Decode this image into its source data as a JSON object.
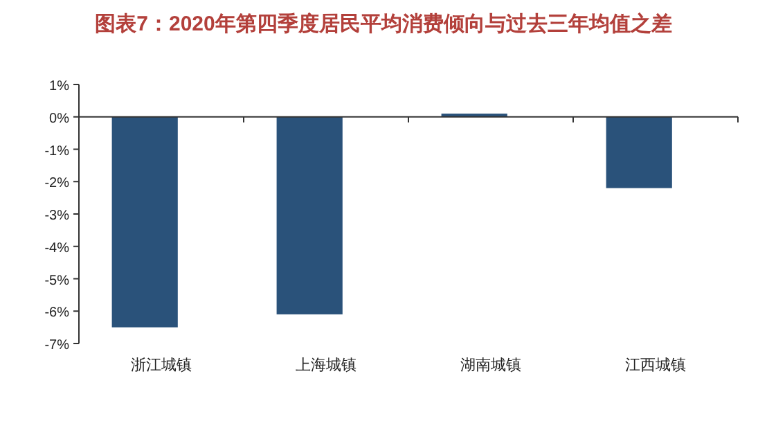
{
  "chart_data": {
    "type": "bar",
    "title": "图表7：2020年第四季度居民平均消费倾向与过去三年均值之差",
    "categories": [
      "浙江城镇",
      "上海城镇",
      "湖南城镇",
      "江西城镇"
    ],
    "values": [
      -6.5,
      -6.1,
      0.1,
      -2.2
    ],
    "color": "#2a527a",
    "ylim": [
      -7,
      1
    ],
    "yticks": [
      {
        "value": -7,
        "label": "-7%"
      },
      {
        "value": -6,
        "label": "-6%"
      },
      {
        "value": -5,
        "label": "-5%"
      },
      {
        "value": -4,
        "label": "-4%"
      },
      {
        "value": -3,
        "label": "-3%"
      },
      {
        "value": -2,
        "label": "-2%"
      },
      {
        "value": -1,
        "label": "-1%"
      },
      {
        "value": 0,
        "label": "0%"
      },
      {
        "value": 1,
        "label": "1%"
      }
    ]
  }
}
